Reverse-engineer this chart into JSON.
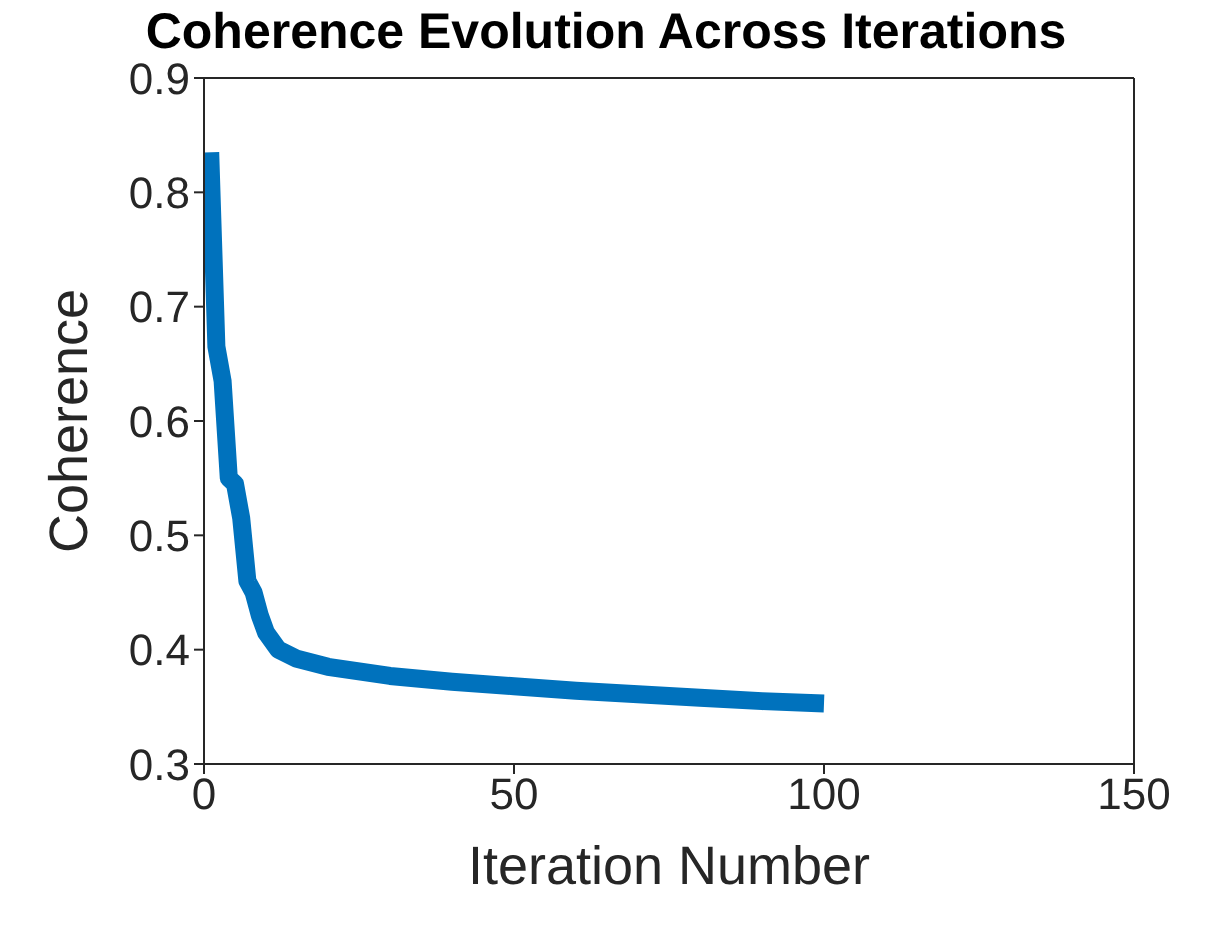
{
  "chart_data": {
    "type": "line",
    "title": "Coherence Evolution Across Iterations",
    "xlabel": "Iteration Number",
    "ylabel": "Coherence",
    "x": [
      1,
      2,
      3,
      4,
      5,
      6,
      7,
      8,
      9,
      10,
      12,
      15,
      20,
      30,
      40,
      50,
      60,
      70,
      80,
      90,
      100
    ],
    "series": [
      {
        "color": "#0072bd",
        "values": [
          0.835,
          0.665,
          0.635,
          0.55,
          0.545,
          0.515,
          0.46,
          0.45,
          0.43,
          0.415,
          0.4,
          0.392,
          0.385,
          0.377,
          0.372,
          0.368,
          0.364,
          0.361,
          0.358,
          0.355,
          0.353
        ]
      }
    ],
    "xlim": [
      0,
      150
    ],
    "xticks": [
      0,
      50,
      100,
      150
    ],
    "ylim": [
      0.3,
      0.9
    ],
    "yticks": [
      0.3,
      0.4,
      0.5,
      0.6,
      0.7,
      0.8,
      0.9
    ],
    "grid": false,
    "legend": false,
    "marker": "none",
    "line_style": "solid"
  }
}
